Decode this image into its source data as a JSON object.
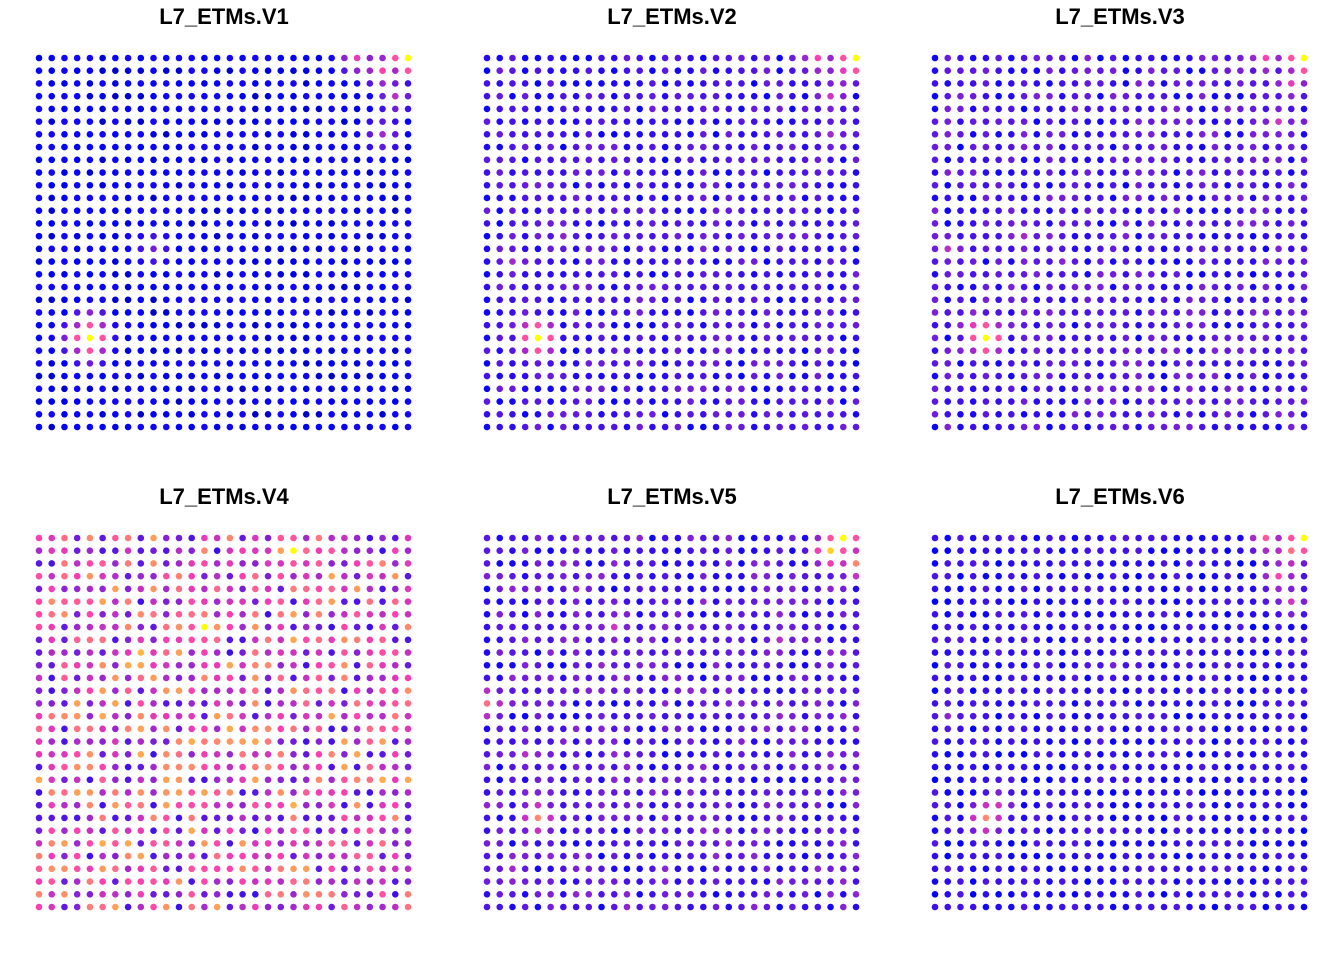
{
  "chart_data": [
    {
      "type": "heatmap",
      "title": "L7_ETMs.V1",
      "grid": {
        "rows": 30,
        "cols": 30
      },
      "xlabel": "",
      "ylabel": "",
      "palette": {
        "low": "#0000FF",
        "mid": "#FF40B0",
        "high": "#FFFF00"
      },
      "hotspots": [
        {
          "row": 0,
          "col": 29,
          "value": 1.0
        },
        {
          "row": 0,
          "col": 25,
          "value": 0.55
        },
        {
          "row": 1,
          "col": 27,
          "value": 0.6
        },
        {
          "row": 3,
          "col": 28,
          "value": 0.45
        },
        {
          "row": 6,
          "col": 27,
          "value": 0.4
        },
        {
          "row": 22,
          "col": 4,
          "value": 1.0
        },
        {
          "row": 21,
          "col": 4,
          "value": 0.55
        },
        {
          "row": 22,
          "col": 3,
          "value": 0.5
        },
        {
          "row": 23,
          "col": 4,
          "value": 0.45
        },
        {
          "row": 15,
          "col": 9,
          "value": 0.3
        }
      ],
      "background": 0.06
    },
    {
      "type": "heatmap",
      "title": "L7_ETMs.V2",
      "grid": {
        "rows": 30,
        "cols": 30
      },
      "xlabel": "",
      "ylabel": "",
      "palette": {
        "low": "#0000FF",
        "mid": "#FF40B0",
        "high": "#FFFF00"
      },
      "hotspots": [
        {
          "row": 0,
          "col": 29,
          "value": 1.0
        },
        {
          "row": 0,
          "col": 26,
          "value": 0.6
        },
        {
          "row": 1,
          "col": 28,
          "value": 0.55
        },
        {
          "row": 3,
          "col": 27,
          "value": 0.5
        },
        {
          "row": 6,
          "col": 27,
          "value": 0.4
        },
        {
          "row": 22,
          "col": 4,
          "value": 1.0
        },
        {
          "row": 21,
          "col": 3,
          "value": 0.45
        },
        {
          "row": 16,
          "col": 2,
          "value": 0.4
        },
        {
          "row": 14,
          "col": 6,
          "value": 0.35
        },
        {
          "row": 20,
          "col": 18,
          "value": 0.3
        }
      ],
      "background": 0.18
    },
    {
      "type": "heatmap",
      "title": "L7_ETMs.V3",
      "grid": {
        "rows": 30,
        "cols": 30
      },
      "xlabel": "",
      "ylabel": "",
      "palette": {
        "low": "#0000FF",
        "mid": "#FF40B0",
        "high": "#FFFF00"
      },
      "hotspots": [
        {
          "row": 0,
          "col": 29,
          "value": 1.0
        },
        {
          "row": 0,
          "col": 26,
          "value": 0.6
        },
        {
          "row": 2,
          "col": 28,
          "value": 0.55
        },
        {
          "row": 5,
          "col": 27,
          "value": 0.5
        },
        {
          "row": 22,
          "col": 4,
          "value": 1.0
        },
        {
          "row": 21,
          "col": 3,
          "value": 0.55
        },
        {
          "row": 15,
          "col": 1,
          "value": 0.45
        },
        {
          "row": 14,
          "col": 7,
          "value": 0.4
        },
        {
          "row": 16,
          "col": 10,
          "value": 0.35
        }
      ],
      "background": 0.2
    },
    {
      "type": "heatmap",
      "title": "L7_ETMs.V4",
      "grid": {
        "rows": 30,
        "cols": 30
      },
      "xlabel": "",
      "ylabel": "",
      "palette": {
        "low": "#0000FF",
        "mid": "#FF40B0",
        "high": "#FFFF00"
      },
      "hotspots": [
        {
          "row": 1,
          "col": 20,
          "value": 1.0
        },
        {
          "row": 1,
          "col": 19,
          "value": 0.8
        },
        {
          "row": 7,
          "col": 13,
          "value": 1.0
        },
        {
          "row": 9,
          "col": 8,
          "value": 0.85
        },
        {
          "row": 10,
          "col": 17,
          "value": 0.75
        },
        {
          "row": 8,
          "col": 4,
          "value": 0.7
        },
        {
          "row": 15,
          "col": 26,
          "value": 0.7
        },
        {
          "row": 24,
          "col": 1,
          "value": 0.75
        },
        {
          "row": 28,
          "col": 0,
          "value": 0.75
        },
        {
          "row": 20,
          "col": 21,
          "value": 0.6
        },
        {
          "row": 12,
          "col": 12,
          "value": 0.6
        }
      ],
      "background": 0.5
    },
    {
      "type": "heatmap",
      "title": "L7_ETMs.V5",
      "grid": {
        "rows": 30,
        "cols": 30
      },
      "xlabel": "",
      "ylabel": "",
      "palette": {
        "low": "#0000FF",
        "mid": "#FF40B0",
        "high": "#FFFF00"
      },
      "hotspots": [
        {
          "row": 0,
          "col": 28,
          "value": 1.0
        },
        {
          "row": 1,
          "col": 27,
          "value": 0.9
        },
        {
          "row": 2,
          "col": 29,
          "value": 0.75
        },
        {
          "row": 13,
          "col": 0,
          "value": 0.7
        },
        {
          "row": 22,
          "col": 4,
          "value": 0.75
        },
        {
          "row": 7,
          "col": 10,
          "value": 0.5
        },
        {
          "row": 8,
          "col": 23,
          "value": 0.45
        },
        {
          "row": 17,
          "col": 3,
          "value": 0.45
        },
        {
          "row": 26,
          "col": 2,
          "value": 0.4
        }
      ],
      "background": 0.22
    },
    {
      "type": "heatmap",
      "title": "L7_ETMs.V6",
      "grid": {
        "rows": 30,
        "cols": 30
      },
      "xlabel": "",
      "ylabel": "",
      "palette": {
        "low": "#0000FF",
        "mid": "#FF40B0",
        "high": "#FFFF00"
      },
      "hotspots": [
        {
          "row": 0,
          "col": 29,
          "value": 1.0
        },
        {
          "row": 0,
          "col": 26,
          "value": 0.65
        },
        {
          "row": 1,
          "col": 28,
          "value": 0.7
        },
        {
          "row": 3,
          "col": 27,
          "value": 0.6
        },
        {
          "row": 5,
          "col": 28,
          "value": 0.5
        },
        {
          "row": 22,
          "col": 4,
          "value": 0.75
        },
        {
          "row": 21,
          "col": 5,
          "value": 0.5
        },
        {
          "row": 14,
          "col": 1,
          "value": 0.35
        },
        {
          "row": 10,
          "col": 14,
          "value": 0.3
        }
      ],
      "background": 0.14
    }
  ]
}
